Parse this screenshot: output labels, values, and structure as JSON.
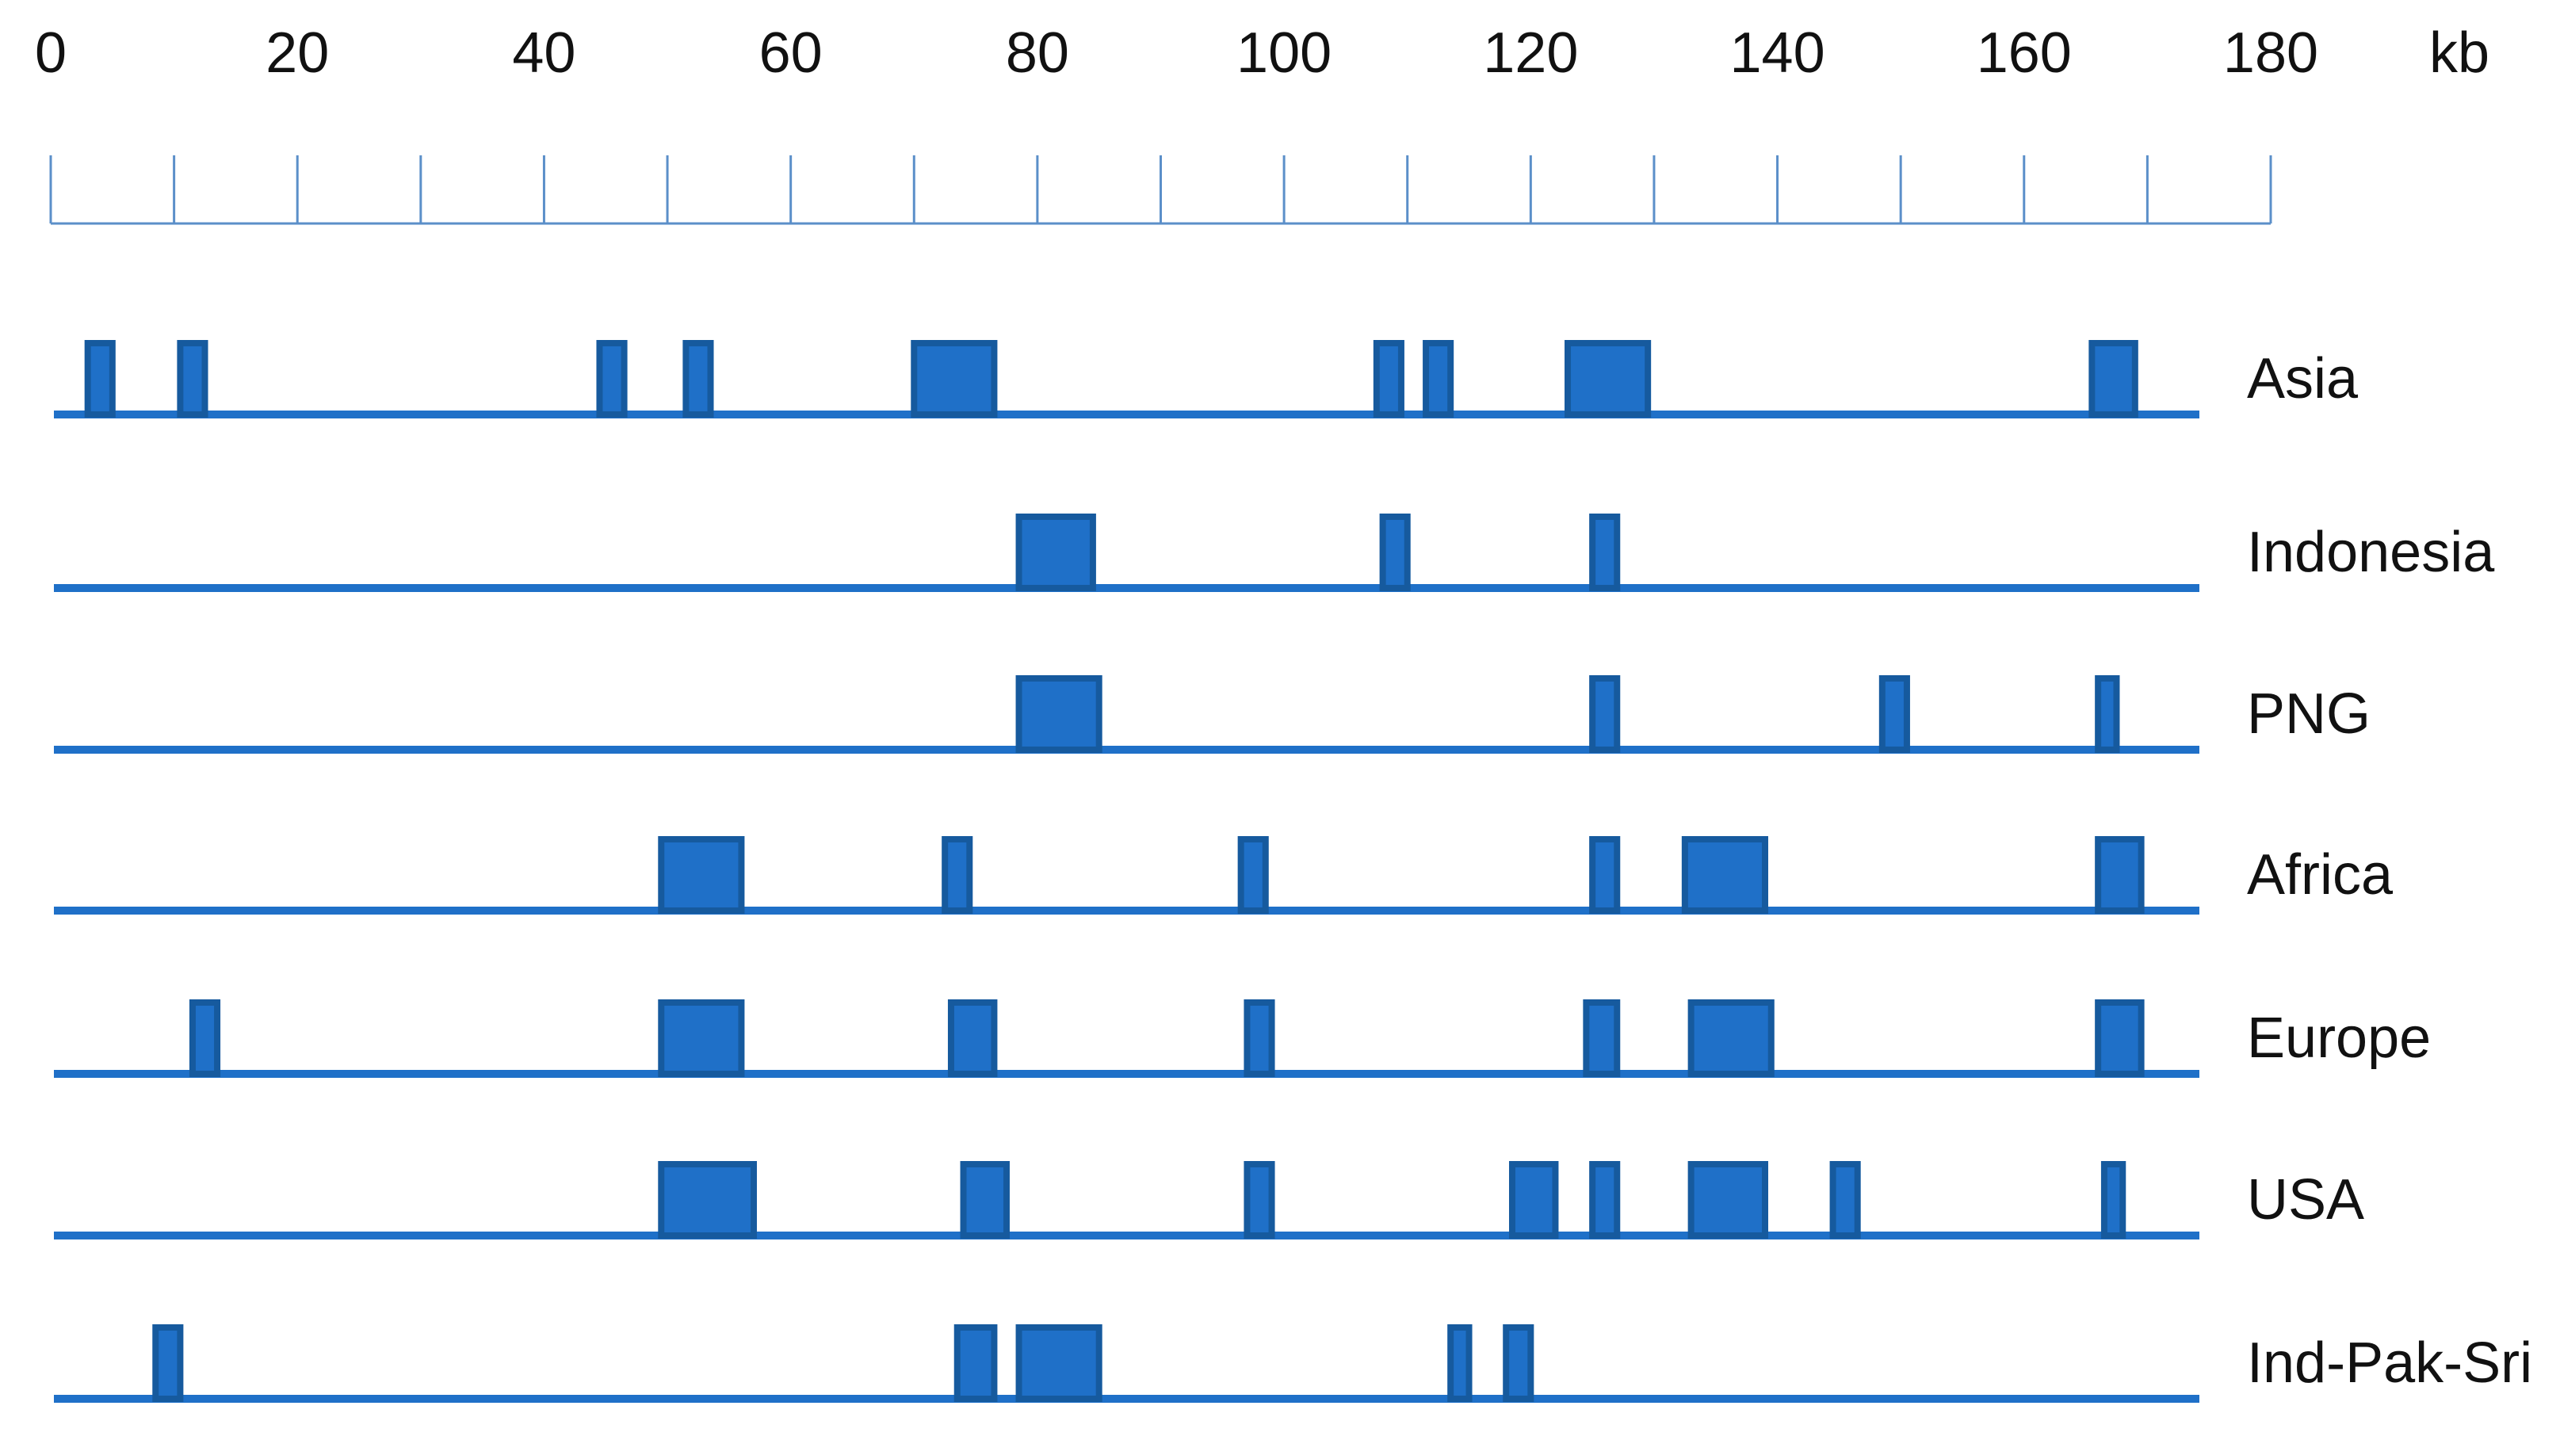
{
  "chart_data": {
    "type": "genome-track",
    "x_label": "kb",
    "xlim": [
      0,
      180
    ],
    "xticks": [
      0,
      20,
      40,
      60,
      80,
      100,
      120,
      140,
      160,
      180
    ],
    "minor_xticks": [
      10,
      30,
      50,
      70,
      90,
      110,
      130,
      150,
      170
    ],
    "color": "#1f70c8",
    "edge_color": "#165a9e",
    "series": [
      {
        "name": "Asia",
        "blocks": [
          [
            3,
            5
          ],
          [
            10.5,
            12.5
          ],
          [
            44.5,
            46.5
          ],
          [
            51.5,
            53.5
          ],
          [
            70,
            76.5
          ],
          [
            107.5,
            109.5
          ],
          [
            111.5,
            113.5
          ],
          [
            123,
            129.5
          ],
          [
            165.5,
            169
          ]
        ]
      },
      {
        "name": "Indonesia",
        "blocks": [
          [
            78.5,
            84.5
          ],
          [
            108,
            110
          ],
          [
            125,
            127
          ]
        ]
      },
      {
        "name": "PNG",
        "blocks": [
          [
            78.5,
            85
          ],
          [
            125,
            127
          ],
          [
            148.5,
            150.5
          ],
          [
            166,
            167.5
          ]
        ]
      },
      {
        "name": "Africa",
        "blocks": [
          [
            49.5,
            56
          ],
          [
            72.5,
            74.5
          ],
          [
            96.5,
            98.5
          ],
          [
            125,
            127
          ],
          [
            132.5,
            139
          ],
          [
            166,
            169.5
          ]
        ]
      },
      {
        "name": "Europe",
        "blocks": [
          [
            11.5,
            13.5
          ],
          [
            49.5,
            56
          ],
          [
            73,
            76.5
          ],
          [
            97,
            99
          ],
          [
            124.5,
            127
          ],
          [
            133,
            139.5
          ],
          [
            166,
            169.5
          ]
        ]
      },
      {
        "name": "USA",
        "blocks": [
          [
            49.5,
            57
          ],
          [
            74,
            77.5
          ],
          [
            97,
            99
          ],
          [
            118.5,
            122
          ],
          [
            125,
            127
          ],
          [
            133,
            139
          ],
          [
            144.5,
            146.5
          ],
          [
            166.5,
            168
          ]
        ]
      },
      {
        "name": "Ind-Pak-Sri",
        "blocks": [
          [
            8.5,
            10.5
          ],
          [
            73.5,
            76.5
          ],
          [
            78.5,
            85
          ],
          [
            113.5,
            115
          ],
          [
            118,
            120
          ]
        ]
      }
    ]
  }
}
